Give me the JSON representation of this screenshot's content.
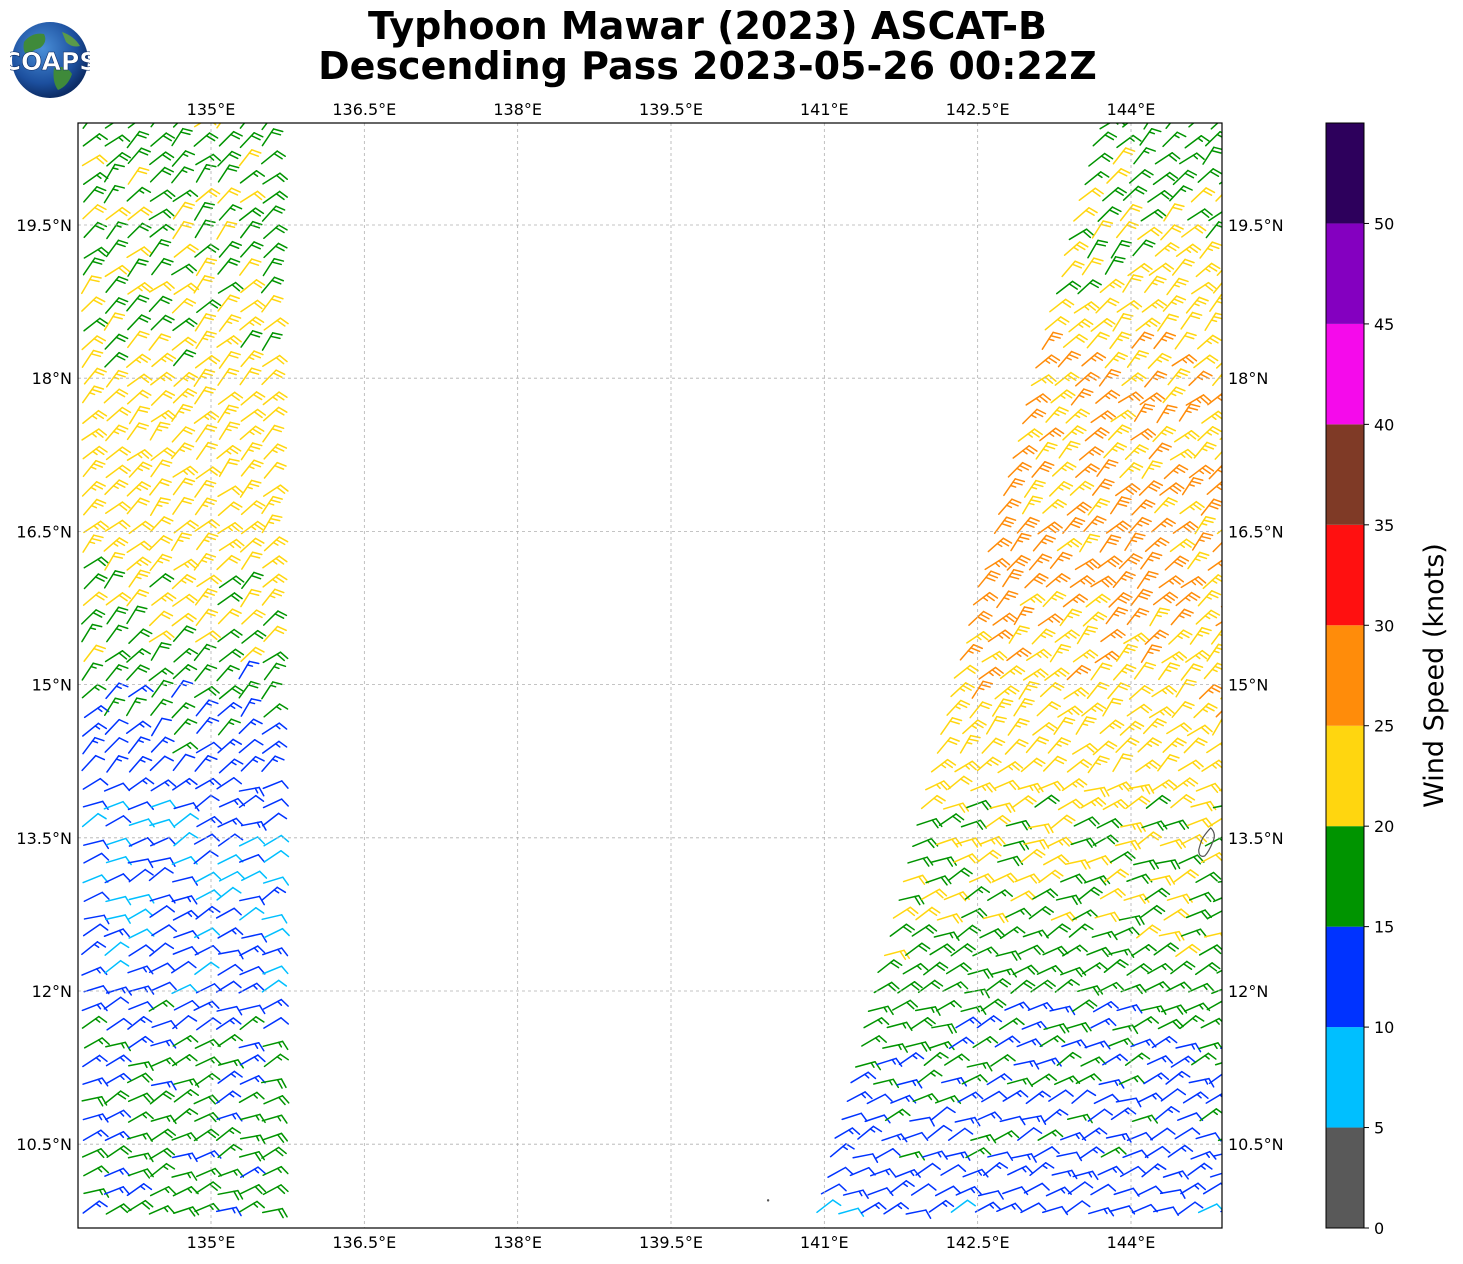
{
  "title": {
    "line1": "Typhoon Mawar (2023) ASCAT-B",
    "line2": "Descending Pass 2023-05-26 00:22Z"
  },
  "logo": {
    "text": "COAPS"
  },
  "map": {
    "lon_ticks": [
      135,
      136.5,
      138,
      139.5,
      141,
      142.5,
      144
    ],
    "lon_labels": [
      "135°E",
      "136.5°E",
      "138°E",
      "139.5°E",
      "141°E",
      "142.5°E",
      "144°E"
    ],
    "lat_ticks": [
      19.5,
      18,
      16.5,
      15,
      13.5,
      12,
      10.5
    ],
    "lat_labels": [
      "19.5°N",
      "18°N",
      "16.5°N",
      "15°N",
      "13.5°N",
      "12°N",
      "10.5°N"
    ],
    "extent": {
      "lon_min": 133.7,
      "lon_max": 144.9,
      "lat_min": 9.7,
      "lat_max": 20.5
    },
    "gridlines": true,
    "island": "Guam"
  },
  "colorbar": {
    "label": "Wind Speed (knots)",
    "tick_labels": [
      "0",
      "5",
      "10",
      "15",
      "20",
      "25",
      "30",
      "35",
      "40",
      "45",
      "50"
    ],
    "bins": [
      {
        "min": 0,
        "max": 5,
        "color": "#595959"
      },
      {
        "min": 5,
        "max": 10,
        "color": "#00bfff"
      },
      {
        "min": 10,
        "max": 15,
        "color": "#0033ff"
      },
      {
        "min": 15,
        "max": 20,
        "color": "#009400"
      },
      {
        "min": 20,
        "max": 25,
        "color": "#ffd60f"
      },
      {
        "min": 25,
        "max": 30,
        "color": "#ff8c0a"
      },
      {
        "min": 30,
        "max": 35,
        "color": "#ff1010"
      },
      {
        "min": 35,
        "max": 40,
        "color": "#7f3a26"
      },
      {
        "min": 40,
        "max": 45,
        "color": "#f50aeb"
      },
      {
        "min": 45,
        "max": 50,
        "color": "#8400c0"
      },
      {
        "min": 50,
        "max": 55,
        "color": "#2d005c"
      }
    ]
  },
  "wind_swaths": {
    "west": {
      "lat_range": [
        9.7,
        20.5
      ],
      "edges": [
        [
          20.5,
          133.75,
          135.6
        ],
        [
          9.7,
          133.75,
          135.6
        ]
      ],
      "speed_zones": [
        {
          "lat": 20.5,
          "kt": 18
        },
        {
          "lat": 19.0,
          "kt": 20
        },
        {
          "lat": 17.5,
          "kt": 23
        },
        {
          "lat": 16.0,
          "kt": 22
        },
        {
          "lat": 15.2,
          "kt": 18
        },
        {
          "lat": 14.5,
          "kt": 14
        },
        {
          "lat": 13.3,
          "kt": 10
        },
        {
          "lat": 12.0,
          "kt": 12
        },
        {
          "lat": 11.0,
          "kt": 16
        },
        {
          "lat": 9.7,
          "kt": 17
        }
      ]
    },
    "east": {
      "lat_range": [
        9.7,
        20.5
      ],
      "edges": [
        [
          20.5,
          143.7,
          144.9
        ],
        [
          9.7,
          140.9,
          144.9
        ]
      ],
      "speed_zones": [
        {
          "lat": 20.5,
          "kt": 17
        },
        {
          "lat": 19.2,
          "kt": 21
        },
        {
          "lat": 17.8,
          "kt": 25
        },
        {
          "lat": 16.0,
          "kt": 27
        },
        {
          "lat": 14.8,
          "kt": 23
        },
        {
          "lat": 13.5,
          "kt": 21
        },
        {
          "lat": 12.2,
          "kt": 18
        },
        {
          "lat": 11.0,
          "kt": 14
        },
        {
          "lat": 9.7,
          "kt": 12
        }
      ]
    }
  }
}
